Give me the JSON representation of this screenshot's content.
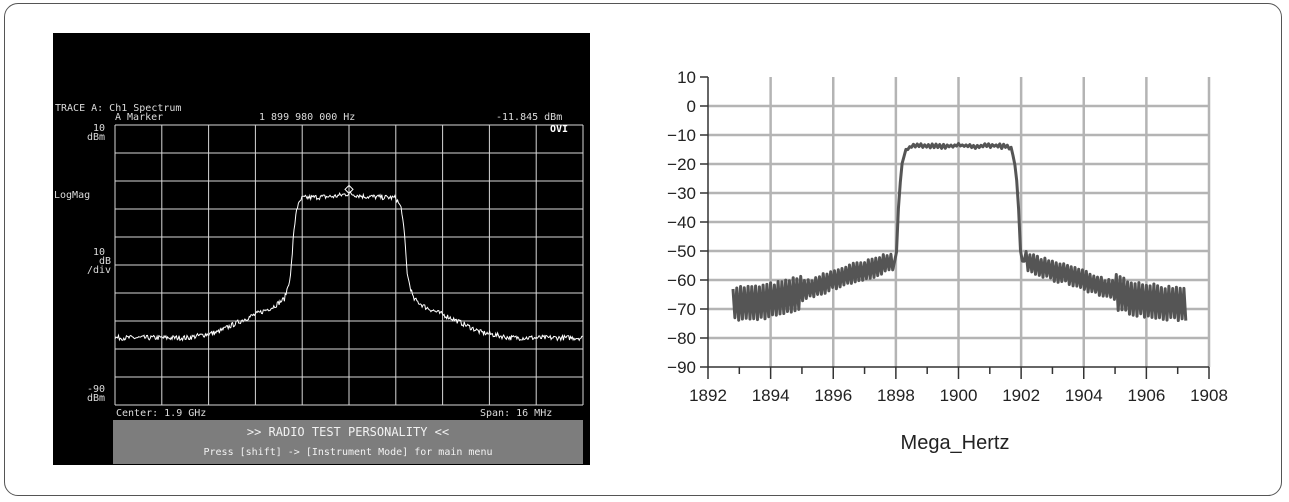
{
  "analyzer": {
    "trace_title": "TRACE A: Ch1 Spectrum",
    "marker_label": "A Marker",
    "marker_freq": "1 899 980 000 Hz",
    "marker_level": "-11.845 dBm",
    "badge": "OVI",
    "ref_level_value": "10",
    "ref_level_unit": "dBm",
    "scale_type": "LogMag",
    "scale_value": "10",
    "scale_unit1": "dB",
    "scale_unit2": "/div",
    "bottom_value": "-90",
    "bottom_unit": "dBm",
    "center": "Center: 1.9 GHz",
    "span": "Span: 16 MHz",
    "footer_line1": ">> RADIO  TEST  PERSONALITY <<",
    "footer_line2": "Press [shift] -> [Instrument Mode] for main menu",
    "colors": {
      "background": "#000000",
      "grid": "#d8d8d8",
      "trace": "#ffffff",
      "footer": "#7d7d7d"
    }
  },
  "chart_data": {
    "type": "line",
    "xlabel": "Mega_Hertz",
    "ylabel": "",
    "xlim": [
      1892,
      1908
    ],
    "ylim": [
      -90,
      10
    ],
    "x_ticks": [
      1892,
      1894,
      1896,
      1898,
      1900,
      1902,
      1904,
      1906,
      1908
    ],
    "y_ticks": [
      10,
      0,
      -10,
      -20,
      -30,
      -40,
      -50,
      -60,
      -70,
      -80,
      -90
    ],
    "grid": true,
    "series_color": "#555555",
    "series": [
      {
        "x": [
          1892.8,
          1893.5,
          1894.0,
          1894.5,
          1895.0,
          1895.5,
          1896.0,
          1896.5,
          1897.0,
          1897.5,
          1898.0,
          1898.05,
          1898.1,
          1898.2,
          1898.3,
          1898.5,
          1899.0,
          1899.5,
          1900.0,
          1900.5,
          1901.0,
          1901.5,
          1901.7,
          1901.8,
          1901.9,
          1901.95,
          1902.0,
          1902.5,
          1903.0,
          1903.5,
          1904.0,
          1904.5,
          1905.0,
          1905.5,
          1906.0,
          1906.5,
          1907.0,
          1907.3
        ],
        "y": [
          -68,
          -68,
          -67,
          -66,
          -64,
          -62,
          -60,
          -58,
          -57,
          -55,
          -53,
          -45,
          -30,
          -20,
          -15,
          -14,
          -13.5,
          -14,
          -13.5,
          -14,
          -13.5,
          -14,
          -15,
          -20,
          -30,
          -45,
          -53,
          -55,
          -57,
          -58,
          -60,
          -62,
          -64,
          -66,
          -67,
          -68,
          -68,
          -68
        ]
      }
    ]
  }
}
